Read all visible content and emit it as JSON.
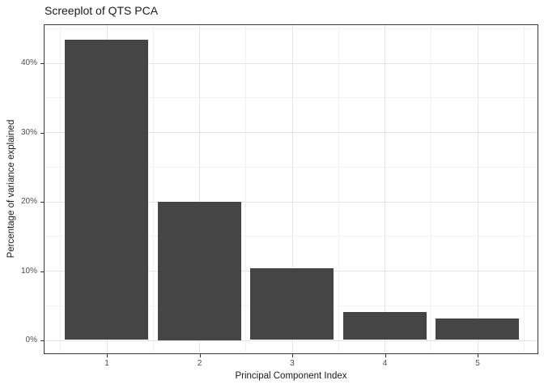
{
  "chart_data": {
    "type": "bar",
    "title": "Screeplot of QTS PCA",
    "xlabel": "Principal Component Index",
    "ylabel": "Percentage of variance explained",
    "categories": [
      "1",
      "2",
      "3",
      "4",
      "5"
    ],
    "values": [
      43.3,
      20.0,
      10.4,
      4.0,
      3.1
    ],
    "y_ticks": [
      {
        "value": 0,
        "label": "0%"
      },
      {
        "value": 10,
        "label": "10%"
      },
      {
        "value": 20,
        "label": "20%"
      },
      {
        "value": 30,
        "label": "30%"
      },
      {
        "value": 40,
        "label": "40%"
      }
    ],
    "y_minor_ticks": [
      5,
      15,
      25,
      35,
      45
    ],
    "ylim": [
      -1.8,
      45.6
    ],
    "legend": "none",
    "grid": {
      "major": true,
      "minor": true,
      "major_color": "#E3E3E3",
      "minor_color": "#F2F2F2"
    },
    "colors": {
      "bar_fill": "#454545",
      "panel_border": "#383838",
      "tick_mark": "#333333",
      "tick_label_text": "#4D4D4D",
      "title_text": "#1A1A1A",
      "background": "#FFFFFF"
    }
  }
}
